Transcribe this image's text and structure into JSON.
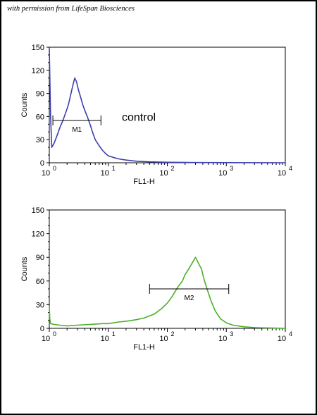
{
  "credit": "with permission from LifeSpan Biosciences",
  "chart_data": [
    {
      "type": "line",
      "ylabel": "Counts",
      "xlabel": "FL1-H",
      "xscale": "log",
      "xlim": [
        1,
        10000
      ],
      "ylim": [
        0,
        150
      ],
      "yticks": [
        "0",
        "30",
        "60",
        "90",
        "120",
        "150"
      ],
      "xticks": [
        {
          "base": "10",
          "exp": "0"
        },
        {
          "base": "10",
          "exp": "1"
        },
        {
          "base": "10",
          "exp": "2"
        },
        {
          "base": "10",
          "exp": "3"
        },
        {
          "base": "10",
          "exp": "4"
        }
      ],
      "color": "#3a3fb0",
      "annotation": "control",
      "marker": {
        "label": "M1",
        "from": 1.15,
        "to": 7.5,
        "y": 55
      },
      "series": [
        {
          "x": [
            1.0,
            1.05,
            1.1,
            1.2,
            1.35,
            1.5,
            1.7,
            1.9,
            2.1,
            2.3,
            2.5,
            2.7,
            2.9,
            3.1,
            3.4,
            3.7,
            4.0,
            4.5,
            5.0,
            5.5,
            6.0,
            7.0,
            8.0,
            9.0,
            10,
            12,
            15,
            20,
            30,
            50,
            100,
            300,
            1000,
            3000,
            10000
          ],
          "y": [
            148,
            60,
            20,
            25,
            35,
            45,
            55,
            65,
            75,
            88,
            100,
            110,
            105,
            95,
            85,
            75,
            68,
            58,
            48,
            38,
            30,
            22,
            16,
            12,
            9,
            7,
            5,
            3.5,
            2,
            1.2,
            0.6,
            0.3,
            0.2,
            0.1,
            0
          ]
        }
      ]
    },
    {
      "type": "line",
      "ylabel": "Counts",
      "xlabel": "FL1-H",
      "xscale": "log",
      "xlim": [
        1,
        10000
      ],
      "ylim": [
        0,
        150
      ],
      "yticks": [
        "0",
        "30",
        "60",
        "90",
        "120",
        "150"
      ],
      "xticks": [
        {
          "base": "10",
          "exp": "0"
        },
        {
          "base": "10",
          "exp": "1"
        },
        {
          "base": "10",
          "exp": "2"
        },
        {
          "base": "10",
          "exp": "3"
        },
        {
          "base": "10",
          "exp": "4"
        }
      ],
      "color": "#4caf2a",
      "marker": {
        "label": "M2",
        "from": 50,
        "to": 1100,
        "y": 50
      },
      "series": [
        {
          "x": [
            1.0,
            1.02,
            1.05,
            1.2,
            1.5,
            2,
            3,
            5,
            8,
            10,
            15,
            20,
            30,
            40,
            60,
            80,
            100,
            120,
            150,
            180,
            200,
            230,
            260,
            300,
            340,
            380,
            420,
            480,
            550,
            650,
            800,
            1000,
            1300,
            2000,
            3000,
            5000,
            8000,
            10000
          ],
          "y": [
            28,
            12,
            6,
            5,
            4,
            3,
            4,
            5,
            6,
            6,
            8,
            9,
            11,
            13,
            18,
            25,
            32,
            40,
            52,
            60,
            68,
            75,
            82,
            90,
            82,
            75,
            62,
            48,
            35,
            22,
            12,
            7,
            4,
            2,
            1,
            0.5,
            0.2,
            0
          ]
        }
      ]
    }
  ]
}
